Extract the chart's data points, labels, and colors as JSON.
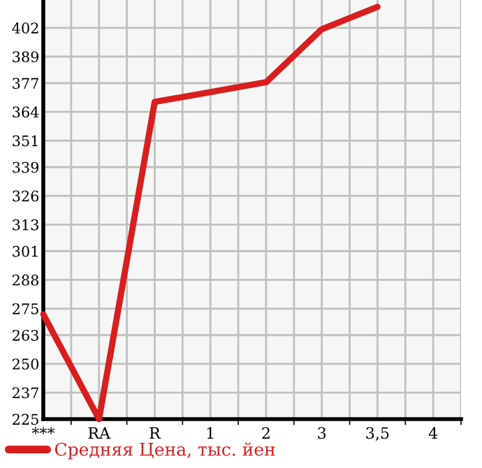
{
  "chart_data": {
    "type": "line",
    "categories": [
      "***",
      "RA",
      "R",
      "1",
      "2",
      "3",
      "3,5",
      "4"
    ],
    "series": [
      {
        "name": "Средняя Цена, тыс. йен",
        "color": "#d81e1e",
        "values": [
          272.4,
          225,
          368.5,
          null,
          377.4,
          401.4,
          411.5,
          null
        ]
      }
    ],
    "ylim": [
      225,
      414.6
    ],
    "yticks": [
      225,
      237,
      250,
      263,
      275,
      288,
      301,
      313,
      326,
      339,
      351,
      364,
      377,
      389,
      402
    ],
    "grid": true,
    "legend": "bottom left",
    "marker": "none",
    "line_style": "solid"
  }
}
